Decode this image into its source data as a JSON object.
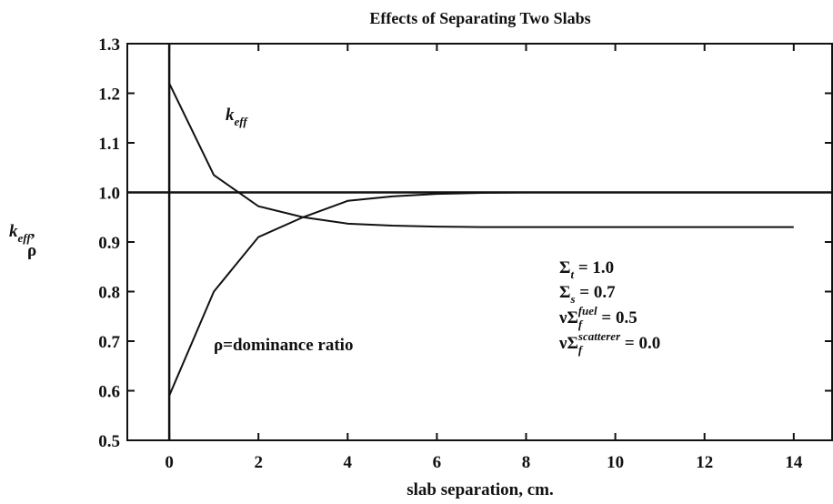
{
  "chart_data": {
    "type": "line",
    "title": "Effects of Separating Two Slabs",
    "xlabel": "slab separation, cm.",
    "ylabel": [
      {
        "runs": [
          {
            "t": "k"
          },
          {
            "t": "eff",
            "sub": true
          },
          {
            "t": ","
          }
        ]
      },
      {
        "runs": [
          {
            "t": "ρ"
          }
        ]
      }
    ],
    "x": [
      0,
      1,
      2,
      3,
      4,
      5,
      6,
      7,
      8,
      9,
      10,
      11,
      12,
      13,
      14
    ],
    "series": [
      {
        "color": "#111111",
        "values": [
          1.22,
          1.035,
          0.972,
          0.95,
          0.937,
          0.933,
          0.931,
          0.93,
          0.93,
          0.93,
          0.93,
          0.93,
          0.93,
          0.93,
          0.93
        ]
      },
      {
        "color": "#111111",
        "values": [
          0.59,
          0.8,
          0.91,
          0.95,
          0.983,
          0.992,
          0.997,
          0.999,
          1.0,
          1.0,
          1.0,
          1.0,
          1.0,
          1.0,
          1.0
        ]
      }
    ],
    "reference_lines": {
      "y": [
        1.0
      ],
      "x": [
        0
      ]
    },
    "xlim": [
      -0.94,
      14.86
    ],
    "ylim": [
      0.5,
      1.3
    ],
    "xticks": [
      0,
      2,
      4,
      6,
      8,
      10,
      12,
      14
    ],
    "yticks": [
      0.5,
      0.6,
      0.7,
      0.8,
      0.9,
      {
        "value": 1.0,
        "label": "1.0"
      },
      1.1,
      1.2,
      1.3
    ],
    "annotations": [
      {
        "runs": [
          {
            "t": "k"
          },
          {
            "t": "eff",
            "sub": true
          }
        ]
      },
      {
        "runs": [
          {
            "t": "ρ=dominance ratio"
          }
        ]
      },
      {
        "runs": [
          {
            "t": "Σ"
          },
          {
            "t": "t",
            "sub": true
          },
          {
            "t": " = 1.0"
          }
        ]
      },
      {
        "runs": [
          {
            "t": "Σ"
          },
          {
            "t": "s",
            "sub": true
          },
          {
            "t": " = 0.7"
          }
        ]
      },
      {
        "runs": [
          {
            "t": "νΣ"
          },
          {
            "t": "f",
            "sub": true
          },
          {
            "t": "fuel",
            "sup": true
          },
          {
            "t": " = 0.5"
          }
        ]
      },
      {
        "runs": [
          {
            "t": "νΣ"
          },
          {
            "t": "f",
            "sub": true
          },
          {
            "t": "scatterer",
            "sup": true
          },
          {
            "t": " = 0.0"
          }
        ]
      }
    ]
  }
}
